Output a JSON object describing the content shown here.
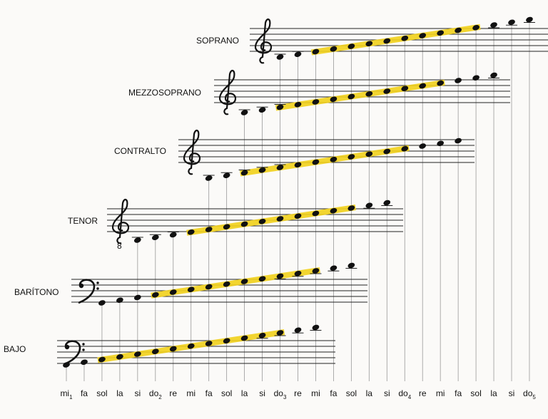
{
  "voices": [
    {
      "label": "SOPRANO",
      "clef": "treble"
    },
    {
      "label": "MEZZOSOPRANO",
      "clef": "treble"
    },
    {
      "label": "CONTRALTO",
      "clef": "treble"
    },
    {
      "label": "TENOR",
      "clef": "treble",
      "clef_mark": "8"
    },
    {
      "label": "BARÍTONO",
      "clef": "bass"
    },
    {
      "label": "BAJO",
      "clef": "bass"
    }
  ],
  "notes": [
    {
      "name": "mi",
      "octave": "1"
    },
    {
      "name": "fa"
    },
    {
      "name": "sol"
    },
    {
      "name": "la"
    },
    {
      "name": "si"
    },
    {
      "name": "do",
      "octave": "2"
    },
    {
      "name": "re"
    },
    {
      "name": "mi"
    },
    {
      "name": "fa"
    },
    {
      "name": "sol"
    },
    {
      "name": "la"
    },
    {
      "name": "si"
    },
    {
      "name": "do",
      "octave": "3"
    },
    {
      "name": "re"
    },
    {
      "name": "mi"
    },
    {
      "name": "fa"
    },
    {
      "name": "sol"
    },
    {
      "name": "la"
    },
    {
      "name": "si"
    },
    {
      "name": "do",
      "octave": "4"
    },
    {
      "name": "re"
    },
    {
      "name": "mi"
    },
    {
      "name": "fa"
    },
    {
      "name": "sol"
    },
    {
      "name": "la"
    },
    {
      "name": "si"
    },
    {
      "name": "do",
      "octave": "5"
    }
  ]
}
